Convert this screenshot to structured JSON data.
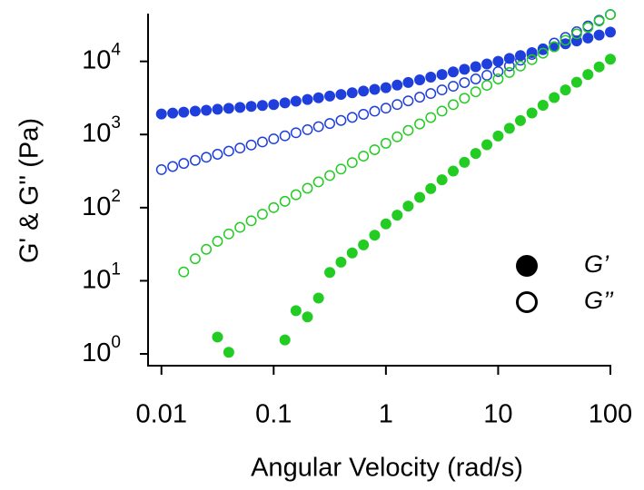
{
  "chart_data": {
    "type": "scatter",
    "log_x": true,
    "log_y": true,
    "x_label": "Angular Velocity (rad/s)",
    "y_label": "G' & G'' (Pa)",
    "xlim": [
      0.0076,
      100
    ],
    "ylim": [
      0.69,
      45000
    ],
    "xticks": [
      0.01,
      0.1,
      1,
      10,
      100
    ],
    "yticks": [
      {
        "value": 1,
        "label": "10",
        "exponent": "0"
      },
      {
        "value": 10,
        "label": "10",
        "exponent": "1"
      },
      {
        "value": 100,
        "label": "10",
        "exponent": "2"
      },
      {
        "value": 1000,
        "label": "10",
        "exponent": "3"
      },
      {
        "value": 10000,
        "label": "10",
        "exponent": "4"
      }
    ],
    "x": [
      0.01,
      0.0126,
      0.0158,
      0.02,
      0.0251,
      0.0316,
      0.0398,
      0.0501,
      0.0631,
      0.0794,
      0.1,
      0.126,
      0.158,
      0.2,
      0.251,
      0.316,
      0.398,
      0.501,
      0.631,
      0.794,
      1,
      1.26,
      1.58,
      2,
      2.51,
      3.16,
      3.98,
      5.01,
      6.31,
      7.94,
      10,
      12.6,
      15.8,
      20,
      25.1,
      31.6,
      39.8,
      50.1,
      63.1,
      79.4,
      100
    ],
    "series": [
      {
        "color": "#1f3fdd",
        "marker": "filled",
        "values": [
          1905,
          1963,
          2023,
          2084,
          2148,
          2213,
          2280,
          2350,
          2421,
          2495,
          2570,
          2710,
          2858,
          3013,
          3177,
          3350,
          3532,
          3724,
          3926,
          4140,
          4365,
          4742,
          5152,
          5598,
          6081,
          6607,
          7178,
          7798,
          8472,
          9204,
          10000,
          10965,
          12023,
          13183,
          14454,
          15849,
          17378,
          19055,
          20893,
          22909,
          25119
        ]
      },
      {
        "color": "#1f3fdd",
        "marker": "open",
        "values": [
          331,
          365,
          402,
          443,
          488,
          537,
          592,
          652,
          718,
          791,
          871,
          959,
          1057,
          1164,
          1282,
          1413,
          1556,
          1714,
          1888,
          2080,
          2291,
          2570,
          2884,
          3236,
          3631,
          4074,
          4571,
          5129,
          5754,
          6457,
          7244,
          8670,
          10375,
          12417,
          14859,
          17783,
          21281,
          25468,
          30479,
          36475,
          43652
        ]
      },
      {
        "color": "#22cc22",
        "marker": "open",
        "values": [
          null,
          null,
          13.2,
          20.0,
          26.9,
          34.7,
          43.7,
          53.7,
          66.1,
          81.3,
          100,
          122,
          150,
          184,
          225,
          275,
          337,
          413,
          506,
          619,
          759,
          929,
          1138,
          1393,
          1706,
          2089,
          2559,
          3133,
          3837,
          4699,
          5754,
          7047,
          8630,
          10568,
          12942,
          15849,
          19409,
          23768,
          29107,
          35645,
          43652
        ]
      },
      {
        "color": "#22cc22",
        "marker": "filled",
        "values": [
          null,
          null,
          null,
          null,
          null,
          1.7,
          1.05,
          null,
          null,
          null,
          null,
          1.55,
          3.9,
          3.2,
          5.8,
          13,
          18,
          24,
          31,
          42,
          60,
          79,
          105,
          138,
          182,
          240,
          316,
          417,
          550,
          724,
          955,
          1216,
          1549,
          1972,
          2512,
          3199,
          4074,
          5188,
          6607,
          8414,
          10715
        ]
      }
    ],
    "legend": [
      {
        "label": "G’",
        "marker": "filled"
      },
      {
        "label": "G’’",
        "marker": "open"
      }
    ]
  }
}
